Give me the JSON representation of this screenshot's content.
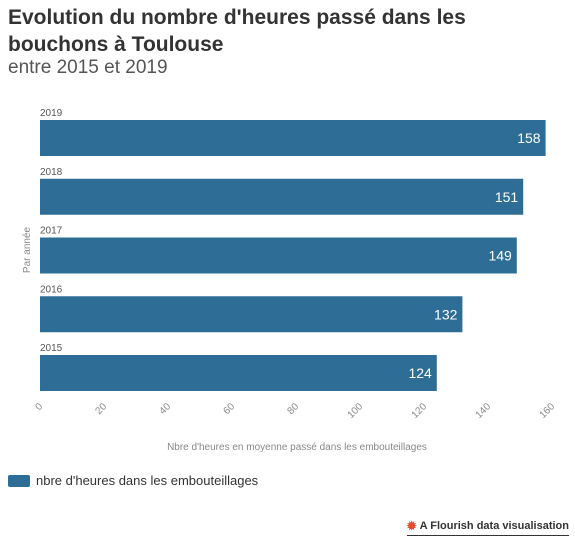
{
  "header": {
    "title": "Evolution du nombre d'heures passé dans les bouchons à Toulouse",
    "subtitle": "entre 2015 et 2019"
  },
  "legend": {
    "label": "nbre d'heures dans les embouteillages",
    "color": "#2e6e96"
  },
  "footer": {
    "credit": "A Flourish data visualisation",
    "icon": "flourish-logo-icon"
  },
  "chart_data": {
    "type": "bar",
    "orientation": "horizontal",
    "categories": [
      "2019",
      "2018",
      "2017",
      "2016",
      "2015"
    ],
    "series": [
      {
        "name": "nbre d'heures dans les embouteillages",
        "values": [
          158,
          151,
          149,
          132,
          124
        ]
      }
    ],
    "xlabel": "Nbre d'heures en moyenne passé dans les embouteillages",
    "ylabel": "Par année",
    "xlim": [
      0,
      160
    ],
    "xticks": [
      0,
      20,
      40,
      60,
      80,
      100,
      120,
      140,
      160
    ],
    "bar_color": "#2e6e96",
    "grid": false,
    "legend_position": "bottom-left"
  }
}
